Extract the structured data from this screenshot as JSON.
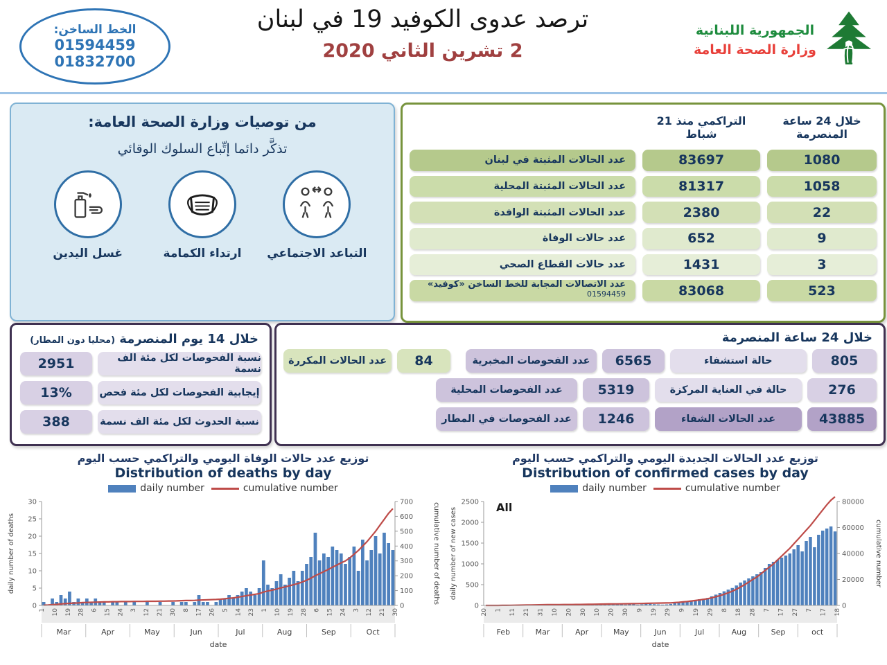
{
  "header": {
    "hotline": {
      "label": "الخط الساخن:",
      "numbers": [
        "01594459",
        "01832700"
      ]
    },
    "title": "ترصد عدوى الكوفيد 19 في لبنان",
    "date": "2 تشرين الثاني 2020",
    "ministry": {
      "line1": "الجمهورية اللبنانية",
      "line2": "وزارة الصحة العامة"
    },
    "colors": {
      "hotline_blue": "#2e74b5",
      "date_red": "#a04040",
      "ministry_green": "#1e8c3e",
      "ministry_red": "#e8403a"
    }
  },
  "recommendations": {
    "title": "من توصيات وزارة الصحة العامة:",
    "subtitle": "تذكَّر دائما إتِّباع السلوك الوقائي",
    "items": [
      {
        "icon": "social-distancing-icon",
        "label": "التباعد الاجتماعي"
      },
      {
        "icon": "face-mask-icon",
        "label": "ارتداء الكمامة"
      },
      {
        "icon": "hand-washing-icon",
        "label": "غسل اليدين"
      }
    ]
  },
  "stats_24h_cumulative": {
    "col_24h": "خلال 24 ساعة المنصرمة",
    "col_cumulative": "التراكمي منذ 21 شباط",
    "rows": [
      {
        "label": "عدد الحالات المثبتة في لبنان",
        "cumulative": "83697",
        "last24h": "1080"
      },
      {
        "label": "عدد الحالات المثبتة المحلية",
        "cumulative": "81317",
        "last24h": "1058"
      },
      {
        "label": "عدد الحالات المثبتة الوافدة",
        "cumulative": "2380",
        "last24h": "22"
      },
      {
        "label": "عدد حالات الوفاة",
        "cumulative": "652",
        "last24h": "9"
      },
      {
        "label": "عدد حالات القطاع الصحي",
        "cumulative": "1431",
        "last24h": "3"
      },
      {
        "label": "عدد الاتصالات المجابة  للخط الساخن «كوفيد»",
        "sublabel": "01594459",
        "cumulative": "83068",
        "last24h": "523"
      }
    ],
    "row_colors": [
      "#b5c98c",
      "#cbdcaa",
      "#d3e0b6",
      "#e0eace",
      "#e6eed8",
      "#c9d9a4"
    ],
    "border_color": "#77933c"
  },
  "stats_14day": {
    "title": "خلال 14 يوم المنصرمة",
    "title_note": "(محليا دون المطار)",
    "rows": [
      {
        "label": "نسبة الفحوصات لكل مئة الف نسمة",
        "value": "2951"
      },
      {
        "label": "إيجابية الفحوصات لكل مئة فحص",
        "value": "13%"
      },
      {
        "label": "نسبة الحدوث لكل مئة الف نسمة",
        "value": "388"
      }
    ],
    "border_color": "#3f3151"
  },
  "stats_last24": {
    "title": "خلال 24 ساعة المنصرمة",
    "cases": [
      {
        "label": "حالة استشفاء",
        "value": "805"
      },
      {
        "label": "حالة في العناية المركزة",
        "value": "276"
      },
      {
        "label": "عدد الحالات الشفاء",
        "value": "43885",
        "highlight": true
      }
    ],
    "tests": [
      {
        "label": "عدد الفحوصات المخبرية",
        "value": "6565"
      },
      {
        "label": "عدد الفحوصات المحلية",
        "value": "5319"
      },
      {
        "label": "عدد الفحوصات في المطار",
        "value": "1246"
      }
    ],
    "repeated": {
      "label": "عدد الحالات المكررة",
      "value": "84"
    },
    "highlight_color": "#b2a2c7"
  },
  "chart_data": [
    {
      "type": "bar+line",
      "title_ar": "توزيع عدد حالات  الوفاة اليومي والتراكمي حسب اليوم",
      "title_en": "Distribution of deaths by day",
      "legend": [
        "daily number",
        "cumulative number"
      ],
      "xlabel": "date",
      "ylabel_left": "daily number of deaths",
      "ylabel_right": "cumulative number of deaths",
      "ylim_left": [
        0,
        30
      ],
      "ylim_right": [
        0,
        700
      ],
      "yticks_left": [
        0,
        5,
        10,
        15,
        20,
        25,
        30
      ],
      "yticks_right": [
        0,
        100,
        200,
        300,
        400,
        500,
        600,
        700
      ],
      "xticks": [
        "1",
        "10",
        "19",
        "28",
        "6",
        "15",
        "24",
        "3",
        "12",
        "21",
        "30",
        "8",
        "17",
        "26",
        "5",
        "14",
        "23",
        "1",
        "10",
        "19",
        "28",
        "6",
        "15",
        "24",
        "3",
        "12",
        "21",
        "30"
      ],
      "months": [
        "Mar",
        "Apr",
        "May",
        "Jun",
        "Jul",
        "Aug",
        "Sep",
        "Oct"
      ],
      "bar_color": "#4f81bd",
      "line_color": "#be4b48",
      "daily": [
        1,
        0,
        2,
        1,
        3,
        2,
        4,
        1,
        2,
        1,
        2,
        1,
        2,
        1,
        1,
        0,
        1,
        1,
        0,
        1,
        0,
        1,
        0,
        0,
        1,
        0,
        0,
        1,
        0,
        0,
        1,
        0,
        1,
        1,
        0,
        1,
        3,
        1,
        1,
        0,
        1,
        2,
        2,
        3,
        2,
        3,
        4,
        5,
        4,
        3,
        5,
        13,
        6,
        5,
        7,
        9,
        6,
        8,
        10,
        7,
        10,
        12,
        14,
        21,
        13,
        15,
        14,
        17,
        16,
        15,
        12,
        14,
        17,
        10,
        19,
        13,
        16,
        20,
        15,
        21,
        18,
        16
      ],
      "cumulative": [
        2,
        3,
        5,
        7,
        10,
        12,
        14,
        16,
        17,
        19,
        20,
        21,
        22,
        23,
        24,
        24,
        25,
        25,
        26,
        26,
        26,
        27,
        27,
        27,
        28,
        28,
        28,
        29,
        29,
        30,
        30,
        31,
        32,
        33,
        33,
        34,
        36,
        37,
        38,
        39,
        40,
        42,
        45,
        48,
        51,
        55,
        60,
        66,
        70,
        75,
        80,
        90,
        97,
        103,
        110,
        118,
        125,
        132,
        140,
        148,
        158,
        170,
        184,
        200,
        214,
        228,
        242,
        258,
        272,
        287,
        300,
        320,
        345,
        370,
        400,
        430,
        465,
        500,
        540,
        580,
        620,
        652
      ]
    },
    {
      "type": "bar+line",
      "title_ar": "توزيع عدد الحالات الجديدة اليومي والتراكمي حسب اليوم",
      "title_en": "Distribution of confirmed cases by day",
      "annotation": "All",
      "legend": [
        "daily number",
        "cumulative number"
      ],
      "xlabel": "date",
      "ylabel_left": "daily number of new cases",
      "ylabel_right": "cumulative number",
      "ylim_left": [
        0,
        2500
      ],
      "ylim_right": [
        0,
        80000
      ],
      "yticks_left": [
        0,
        500,
        1000,
        1500,
        2000,
        2500
      ],
      "yticks_right": [
        0,
        20000,
        40000,
        60000,
        80000
      ],
      "xticks": [
        "20",
        "1",
        "11",
        "21",
        "31",
        "10",
        "20",
        "30",
        "10",
        "20",
        "30",
        "9",
        "19",
        "29",
        "9",
        "19",
        "29",
        "8",
        "18",
        "28",
        "7",
        "17",
        "27",
        "7",
        "17",
        "18"
      ],
      "months": [
        "Feb",
        "Mar",
        "Apr",
        "May",
        "Jun",
        "Jul",
        "Aug",
        "Sep",
        "oct"
      ],
      "bar_color": "#4f81bd",
      "line_color": "#be4b48",
      "daily": [
        1,
        2,
        1,
        3,
        5,
        8,
        12,
        15,
        10,
        18,
        22,
        15,
        20,
        16,
        10,
        14,
        20,
        25,
        18,
        12,
        15,
        20,
        22,
        18,
        20,
        25,
        30,
        36,
        26,
        20,
        30,
        40,
        35,
        30,
        20,
        25,
        30,
        18,
        25,
        35,
        40,
        30,
        25,
        20,
        25,
        35,
        50,
        65,
        80,
        100,
        120,
        130,
        150,
        160,
        180,
        220,
        260,
        300,
        340,
        380,
        420,
        480,
        550,
        600,
        650,
        700,
        750,
        800,
        900,
        1000,
        1050,
        1100,
        1150,
        1200,
        1250,
        1350,
        1450,
        1300,
        1550,
        1650,
        1400,
        1700,
        1800,
        1850,
        1900,
        1780
      ],
      "cumulative": [
        2,
        4,
        8,
        15,
        30,
        60,
        100,
        150,
        200,
        270,
        330,
        400,
        450,
        500,
        540,
        570,
        600,
        630,
        660,
        680,
        700,
        720,
        740,
        760,
        800,
        850,
        900,
        950,
        1000,
        1050,
        1100,
        1160,
        1200,
        1250,
        1300,
        1350,
        1400,
        1450,
        1500,
        1600,
        1700,
        1750,
        1800,
        1850,
        1900,
        2000,
        2200,
        2400,
        2700,
        3000,
        3400,
        3800,
        4200,
        4700,
        5200,
        5900,
        6700,
        7600,
        8600,
        9700,
        11000,
        12500,
        14200,
        16000,
        18000,
        20000,
        22000,
        24500,
        27000,
        29500,
        32000,
        35000,
        38000,
        41000,
        44000,
        47500,
        51000,
        54500,
        58000,
        61500,
        65500,
        69500,
        73500,
        77500,
        81000,
        83697
      ]
    }
  ]
}
